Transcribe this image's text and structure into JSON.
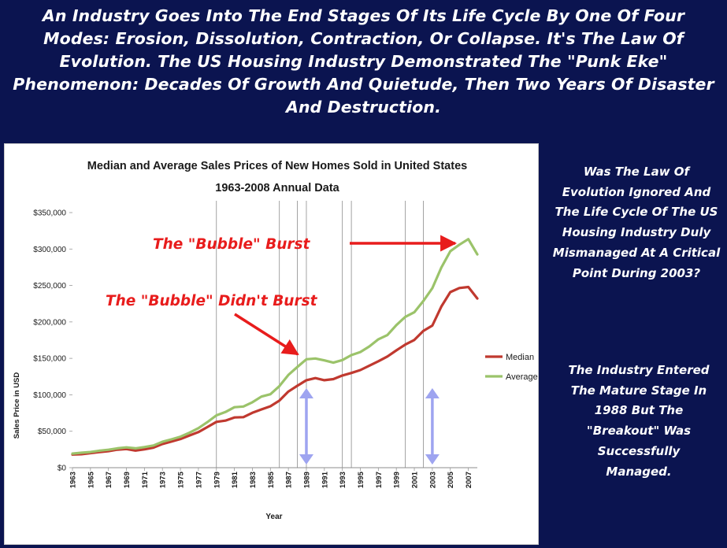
{
  "headline": "An Industry Goes Into The End Stages Of Its Life Cycle By One Of Four Modes: Erosion, Dissolution, Contraction, Or Collapse. It's The Law Of Evolution. The US Housing Industry Demonstrated The \"Punk Eke\" Phenomenon: Decades Of Growth And Quietude, Then Two Years Of Disaster And Destruction.",
  "side_question": "Was The Law Of Evolution Ignored And The Life Cycle Of The US Housing Industry Duly Mismanaged At A Critical Point During 2003?",
  "side_answer": "The Industry Entered The Mature Stage In 1988 But The \"Breakout\" Was Successfully Managed.",
  "colors": {
    "background": "#0b1450",
    "median": "#c0392f",
    "average": "#9bc36a",
    "annotation": "#e81c1c",
    "marker_arrow": "#9ea4f0"
  },
  "chart_data": {
    "type": "line",
    "title": "Median and Average Sales Prices of New Homes Sold in United States",
    "subtitle": "1963-2008 Annual Data",
    "xlabel": "Year",
    "ylabel": "Sales Price in USD",
    "ylim": [
      0,
      350000
    ],
    "yticks": [
      0,
      50000,
      100000,
      150000,
      200000,
      250000,
      300000,
      350000
    ],
    "ytick_labels": [
      "$0",
      "$50,000",
      "$100,000",
      "$150,000",
      "$200,000",
      "$250,000",
      "$300,000",
      "$350,000"
    ],
    "x": [
      1963,
      1964,
      1965,
      1966,
      1967,
      1968,
      1969,
      1970,
      1971,
      1972,
      1973,
      1974,
      1975,
      1976,
      1977,
      1978,
      1979,
      1980,
      1981,
      1982,
      1983,
      1984,
      1985,
      1986,
      1987,
      1988,
      1989,
      1990,
      1991,
      1992,
      1993,
      1994,
      1995,
      1996,
      1997,
      1998,
      1999,
      2000,
      2001,
      2002,
      2003,
      2004,
      2005,
      2006,
      2007,
      2008
    ],
    "xtick_labels": [
      "1963",
      "1965",
      "1967",
      "1969",
      "1971",
      "1973",
      "1975",
      "1977",
      "1979",
      "1981",
      "1983",
      "1985",
      "1987",
      "1989",
      "1991",
      "1993",
      "1995",
      "1997",
      "1999",
      "2001",
      "2003",
      "2005",
      "2007"
    ],
    "vertical_gridline_years": [
      1979,
      1986,
      1988,
      1989,
      1993,
      1994,
      2000,
      2002
    ],
    "series": [
      {
        "name": "Median",
        "color": "#c0392f",
        "values": [
          18000,
          18500,
          20000,
          21400,
          22700,
          24700,
          25600,
          23400,
          25200,
          27600,
          32500,
          35900,
          39300,
          44200,
          48800,
          55700,
          62900,
          64600,
          68900,
          69300,
          75300,
          79900,
          84300,
          92000,
          104500,
          112500,
          120000,
          122900,
          120000,
          121500,
          126500,
          130000,
          133900,
          140000,
          146000,
          152500,
          161000,
          169000,
          175200,
          187600,
          195000,
          221000,
          240900,
          246500,
          247900,
          232100
        ]
      },
      {
        "name": "Average",
        "color": "#9bc36a",
        "values": [
          19300,
          20500,
          21500,
          23300,
          24600,
          26600,
          27900,
          26600,
          28300,
          30500,
          35500,
          38900,
          42600,
          48000,
          54200,
          62500,
          71800,
          76400,
          83000,
          83900,
          89800,
          97600,
          100800,
          111900,
          127200,
          138300,
          148800,
          149800,
          147200,
          144100,
          147700,
          154500,
          158700,
          166400,
          176200,
          181900,
          195600,
          207000,
          213200,
          228700,
          246300,
          274500,
          297000,
          305900,
          313600,
          292600
        ]
      }
    ],
    "legend": [
      "Median",
      "Average"
    ],
    "legend_position": "right",
    "annotations": [
      {
        "text": "The \"Bubble\" Burst",
        "points_to": 2007
      },
      {
        "text": "The \"Bubble\" Didn't Burst",
        "points_to": 1989
      }
    ],
    "double_arrows": [
      1989,
      2003
    ]
  }
}
